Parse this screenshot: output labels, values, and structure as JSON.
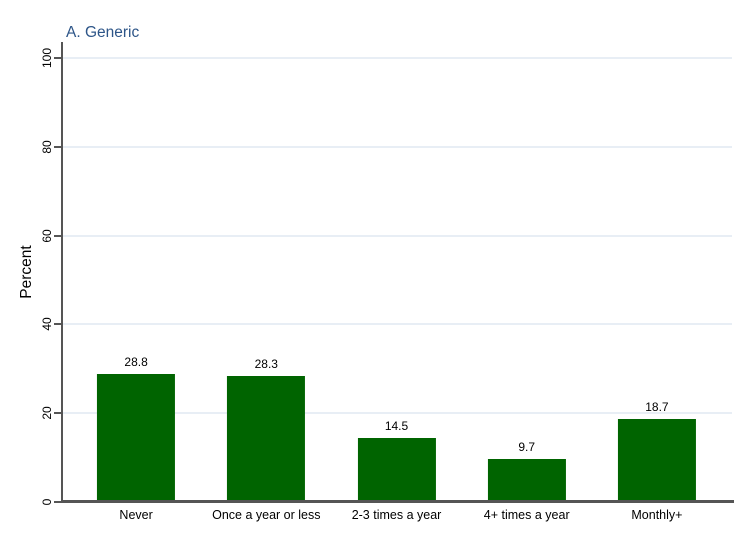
{
  "chart_data": {
    "type": "bar",
    "title": "A. Generic",
    "xlabel": "",
    "ylabel": "Percent",
    "categories": [
      "Never",
      "Once a year or less",
      "2-3 times a year",
      "4+ times a year",
      "Monthly+"
    ],
    "values": [
      28.8,
      28.3,
      14.5,
      9.7,
      18.7
    ],
    "value_labels": [
      "28.8",
      "28.3",
      "14.5",
      "9.7",
      "18.7"
    ],
    "yticks": [
      0,
      20,
      40,
      60,
      80,
      100
    ],
    "ylim": [
      0,
      100
    ],
    "grid": true,
    "legend_position": "none",
    "colors": {
      "bar": "#006400",
      "title": "#2d5588",
      "grid": "#e8eef5",
      "axis": "#555555",
      "text": "#000000",
      "background": "#ffffff"
    }
  }
}
